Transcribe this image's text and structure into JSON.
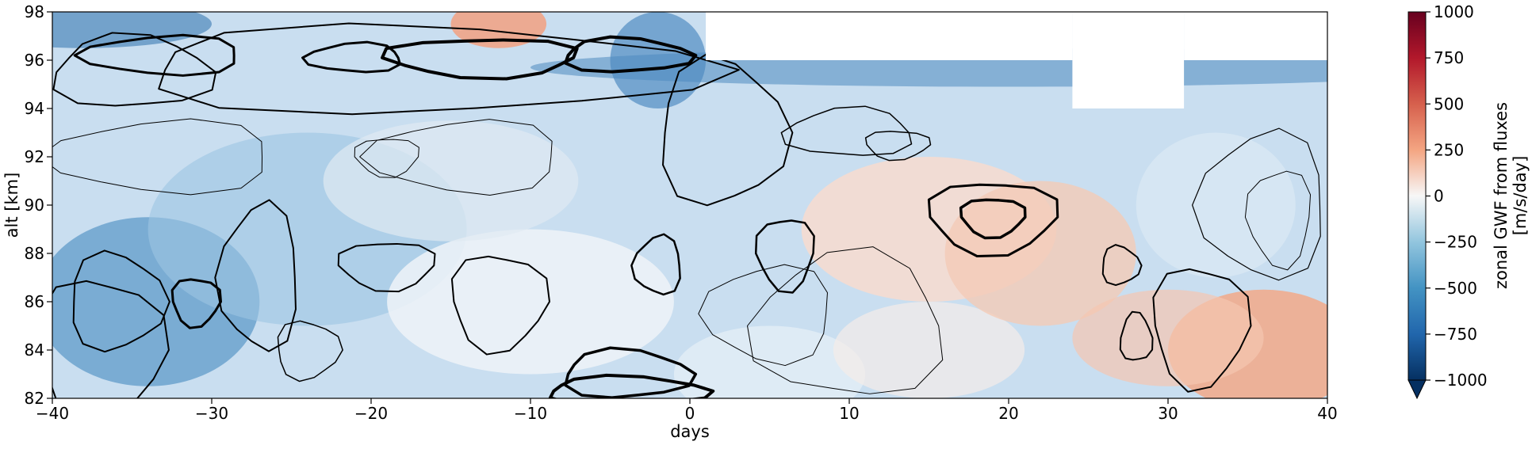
{
  "chart_data": {
    "type": "heatmap",
    "title": "",
    "xlabel": "days",
    "ylabel": "alt [km]",
    "xlim": [
      -40,
      40
    ],
    "ylim": [
      82,
      98
    ],
    "xticks": [
      -40,
      -30,
      -20,
      -10,
      0,
      10,
      20,
      30,
      40
    ],
    "yticks": [
      82,
      84,
      86,
      88,
      90,
      92,
      94,
      96,
      98
    ],
    "xtick_labels": [
      "−40",
      "−30",
      "−20",
      "−10",
      "0",
      "10",
      "20",
      "30",
      "40"
    ],
    "ytick_labels": [
      "82",
      "84",
      "86",
      "88",
      "90",
      "92",
      "94",
      "96",
      "98"
    ],
    "colorbar": {
      "label_line1": "zonal GWF from fluxes",
      "label_line2": "[m/s/day]",
      "range": [
        -1000,
        1000
      ],
      "ticks": [
        -1000,
        -750,
        -500,
        -250,
        0,
        250,
        500,
        750,
        1000
      ],
      "tick_labels": [
        "−1000",
        "−750",
        "−500",
        "−250",
        "0",
        "250",
        "500",
        "750",
        "1000"
      ],
      "colormap": "RdBu_r",
      "extend": "min"
    },
    "colors": {
      "negative": "#2166ac",
      "neutral": "#f7f7f7",
      "positive": "#b2182b",
      "contour": "#000000"
    },
    "missing_data_regions": [
      {
        "x": [
          1,
          24
        ],
        "y": [
          96,
          98
        ]
      },
      {
        "x": [
          24,
          31
        ],
        "y": [
          94,
          98
        ]
      },
      {
        "x": [
          31,
          40
        ],
        "y": [
          96,
          98
        ]
      }
    ],
    "grid": false
  }
}
